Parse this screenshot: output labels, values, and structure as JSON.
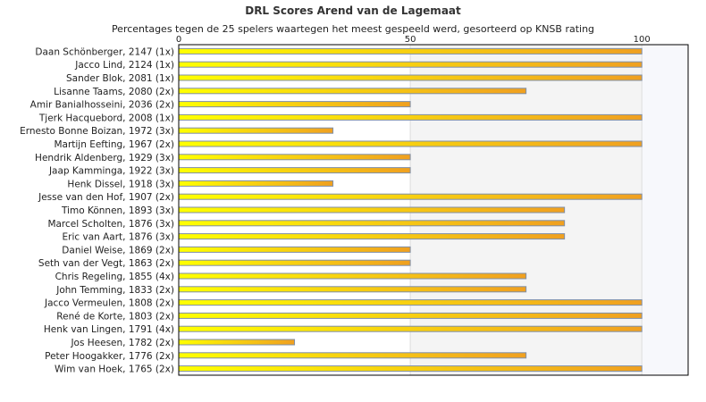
{
  "chart_data": {
    "type": "bar",
    "orientation": "horizontal",
    "title": "DRL Scores Arend van de Lagemaat",
    "subtitle": "Percentages tegen de 25 spelers waartegen het meest gespeeld werd, gesorteerd op KNSB rating",
    "xlim": [
      0,
      110
    ],
    "x_ticks": [
      0,
      50,
      100
    ],
    "x_axis_position": "top",
    "grid": true,
    "categories": [
      "Daan Schönberger, 2147 (1x)",
      "Jacco Lind, 2124 (1x)",
      "Sander Blok, 2081 (1x)",
      "Lisanne Taams, 2080 (2x)",
      "Amir Banialhosseini, 2036 (2x)",
      "Tjerk Hacquebord, 2008 (1x)",
      "Ernesto Bonne Boizan, 1972 (3x)",
      "Martijn Eefting, 1967 (2x)",
      "Hendrik Aldenberg, 1929 (3x)",
      "Jaap Kamminga, 1922 (3x)",
      "Henk Dissel, 1918 (3x)",
      "Jesse van den Hof, 1907 (2x)",
      "Timo Können, 1893 (3x)",
      "Marcel Scholten, 1876 (3x)",
      "Eric van Aart, 1876 (3x)",
      "Daniel Weise, 1869 (2x)",
      "Seth van der Vegt, 1863 (2x)",
      "Chris Regeling, 1855 (4x)",
      "John Temming, 1833 (2x)",
      "Jacco Vermeulen, 1808 (2x)",
      "René de Korte, 1803 (2x)",
      "Henk van Lingen, 1791 (4x)",
      "Jos Heesen, 1782 (2x)",
      "Peter Hoogakker, 1776 (2x)",
      "Wim van Hoek, 1765 (2x)"
    ],
    "values": [
      100,
      100,
      100,
      75,
      50,
      100,
      33.3,
      100,
      50,
      50,
      33.3,
      100,
      83.3,
      83.3,
      83.3,
      50,
      50,
      75,
      75,
      100,
      100,
      100,
      25,
      75,
      100
    ],
    "colors": {
      "bar_start": "#ffff00",
      "bar_end": "#f0a020",
      "bar_border": "#7f8fa8",
      "band_shade": "#f4f4f4",
      "band_far": "#f7f8fc",
      "grid": "#dddddd",
      "axis": "#000000"
    }
  }
}
